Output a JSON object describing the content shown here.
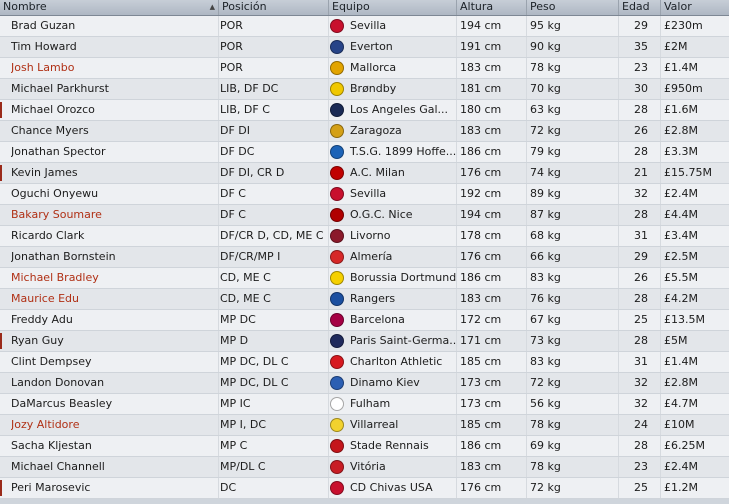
{
  "headers": {
    "name": "Nombre",
    "position": "Posición",
    "team": "Equipo",
    "height": "Altura",
    "weight": "Peso",
    "age": "Edad",
    "value": "Valor"
  },
  "players": [
    {
      "name": "Brad Guzan",
      "position": "POR",
      "team": "Sevilla",
      "height": "194 cm",
      "weight": "95 kg",
      "age": "29",
      "value": "£230m",
      "crest": "#c8102e"
    },
    {
      "name": "Tim Howard",
      "position": "POR",
      "team": "Everton",
      "height": "191 cm",
      "weight": "90 kg",
      "age": "35",
      "value": "£2M",
      "crest": "#274488"
    },
    {
      "name": "Josh Lambo",
      "position": "POR",
      "team": "Mallorca",
      "height": "183 cm",
      "weight": "78 kg",
      "age": "23",
      "value": "£1.4M",
      "crest": "#e2a400",
      "highlight": true
    },
    {
      "name": "Michael Parkhurst",
      "position": "LIB, DF DC",
      "team": "Brøndby",
      "height": "181 cm",
      "weight": "70 kg",
      "age": "30",
      "value": "£950m",
      "crest": "#f0c800"
    },
    {
      "name": "Michael Orozco",
      "position": "LIB, DF C",
      "team": "Los Angeles Gal...",
      "height": "180 cm",
      "weight": "63 kg",
      "age": "28",
      "value": "£1.6M",
      "crest": "#1a2a55",
      "marked": true
    },
    {
      "name": "Chance Myers",
      "position": "DF DI",
      "team": "Zaragoza",
      "height": "183 cm",
      "weight": "72 kg",
      "age": "26",
      "value": "£2.8M",
      "crest": "#d4a017"
    },
    {
      "name": "Jonathan Spector",
      "position": "DF DC",
      "team": "T.S.G. 1899 Hoffe...",
      "height": "186 cm",
      "weight": "79 kg",
      "age": "28",
      "value": "£3.3M",
      "crest": "#1c63b7"
    },
    {
      "name": "Kevin James",
      "position": "DF DI, CR D",
      "team": "A.C. Milan",
      "height": "176 cm",
      "weight": "74 kg",
      "age": "21",
      "value": "£15.75M",
      "crest": "#c00000",
      "marked": true
    },
    {
      "name": "Oguchi Onyewu",
      "position": "DF C",
      "team": "Sevilla",
      "height": "192 cm",
      "weight": "89 kg",
      "age": "32",
      "value": "£2.4M",
      "crest": "#c8102e"
    },
    {
      "name": "Bakary Soumare",
      "position": "DF C",
      "team": "O.G.C. Nice",
      "height": "194 cm",
      "weight": "87 kg",
      "age": "28",
      "value": "£4.4M",
      "crest": "#b00000",
      "highlight": true
    },
    {
      "name": "Ricardo Clark",
      "position": "DF/CR D, CD, ME C",
      "team": "Livorno",
      "height": "178 cm",
      "weight": "68 kg",
      "age": "31",
      "value": "£3.4M",
      "crest": "#8b1a2b"
    },
    {
      "name": "Jonathan Bornstein",
      "position": "DF/CR/MP I",
      "team": "Almería",
      "height": "176 cm",
      "weight": "66 kg",
      "age": "29",
      "value": "£2.5M",
      "crest": "#d62828"
    },
    {
      "name": "Michael Bradley",
      "position": "CD, ME C",
      "team": "Borussia Dortmund",
      "height": "186 cm",
      "weight": "83 kg",
      "age": "26",
      "value": "£5.5M",
      "crest": "#f5d000",
      "highlight": true
    },
    {
      "name": "Maurice Edu",
      "position": "CD, ME C",
      "team": "Rangers",
      "height": "183 cm",
      "weight": "76 kg",
      "age": "28",
      "value": "£4.2M",
      "crest": "#1b4fa0",
      "highlight": true
    },
    {
      "name": "Freddy Adu",
      "position": "MP DC",
      "team": "Barcelona",
      "height": "172 cm",
      "weight": "67 kg",
      "age": "25",
      "value": "£13.5M",
      "crest": "#a50044"
    },
    {
      "name": "Ryan Guy",
      "position": "MP D",
      "team": "Paris Saint-Germa...",
      "height": "171 cm",
      "weight": "73 kg",
      "age": "28",
      "value": "£5M",
      "crest": "#1f2a5c",
      "marked": true
    },
    {
      "name": "Clint Dempsey",
      "position": "MP DC, DL C",
      "team": "Charlton Athletic",
      "height": "185 cm",
      "weight": "83 kg",
      "age": "31",
      "value": "£1.4M",
      "crest": "#d71920"
    },
    {
      "name": "Landon Donovan",
      "position": "MP DC, DL C",
      "team": "Dinamo Kiev",
      "height": "173 cm",
      "weight": "72 kg",
      "age": "32",
      "value": "£2.8M",
      "crest": "#2b5fb3"
    },
    {
      "name": "DaMarcus Beasley",
      "position": "MP IC",
      "team": "Fulham",
      "height": "173 cm",
      "weight": "56 kg",
      "age": "32",
      "value": "£4.7M",
      "crest": "#ffffff"
    },
    {
      "name": "Jozy Altidore",
      "position": "MP I, DC",
      "team": "Villarreal",
      "height": "185 cm",
      "weight": "78 kg",
      "age": "24",
      "value": "£10M",
      "crest": "#f2d22e",
      "highlight": true
    },
    {
      "name": "Sacha Kljestan",
      "position": "MP C",
      "team": "Stade Rennais",
      "height": "186 cm",
      "weight": "69 kg",
      "age": "28",
      "value": "£6.25M",
      "crest": "#c4161c"
    },
    {
      "name": "Michael Channell",
      "position": "MP/DL C",
      "team": "Vitória",
      "height": "183 cm",
      "weight": "78 kg",
      "age": "23",
      "value": "£2.4M",
      "crest": "#c81d25"
    },
    {
      "name": "Peri Marosevic",
      "position": "DC",
      "team": "CD Chivas USA",
      "height": "176 cm",
      "weight": "72 kg",
      "age": "25",
      "value": "£1.2M",
      "crest": "#c8102e",
      "marked": true
    }
  ]
}
